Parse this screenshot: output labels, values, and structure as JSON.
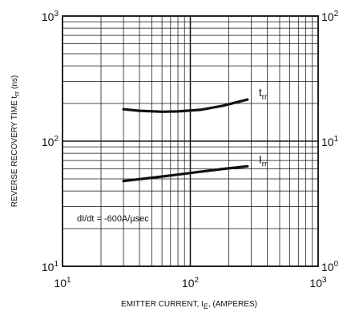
{
  "chart_data": {
    "type": "line",
    "x_scale": "log",
    "y_scale": "log",
    "grid": true,
    "xlim": [
      10,
      1000
    ],
    "ylim": [
      10,
      1000
    ],
    "y2lim": [
      1,
      100
    ],
    "xlabel_main": "EMITTER CURRENT, I",
    "xlabel_sub": "E",
    "xlabel_tail": ", (AMPERES)",
    "ylabel_main": "REVERSE RECOVERY TIME  t",
    "ylabel_sub": "rr",
    "ylabel_tail": "  (ns)",
    "x_ticks": [
      {
        "base": "10",
        "exp": "1"
      },
      {
        "base": "10",
        "exp": "2"
      },
      {
        "base": "10",
        "exp": "3"
      }
    ],
    "y_ticks": [
      {
        "base": "10",
        "exp": "3"
      },
      {
        "base": "10",
        "exp": "2"
      },
      {
        "base": "10",
        "exp": "1"
      }
    ],
    "y2_ticks": [
      {
        "base": "10",
        "exp": "2"
      },
      {
        "base": "10",
        "exp": "1"
      },
      {
        "base": "10",
        "exp": "0"
      }
    ],
    "annotation": "dI/dt = -600A/µsec",
    "series": [
      {
        "label_main": "I",
        "label_sub": "rr",
        "axis": "right",
        "x": [
          30,
          50,
          80,
          120,
          180,
          280
        ],
        "y": [
          4.8,
          5.1,
          5.4,
          5.7,
          6.0,
          6.3
        ]
      },
      {
        "label_main": "t",
        "label_sub": "rr",
        "axis": "left",
        "x": [
          30,
          40,
          60,
          80,
          120,
          180,
          280
        ],
        "y": [
          180,
          175,
          172,
          173,
          178,
          192,
          215
        ]
      }
    ]
  }
}
